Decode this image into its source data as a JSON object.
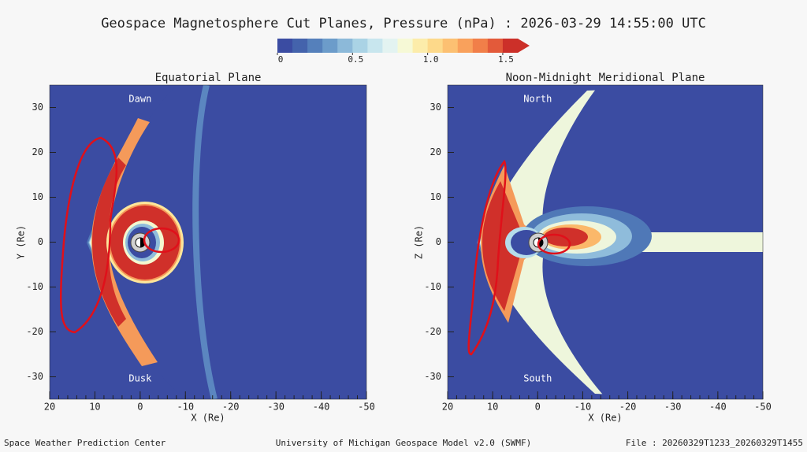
{
  "title": "Geospace Magnetosphere Cut Planes, Pressure (nPa) : 2026-03-29 14:55:00 UTC",
  "colorbar": {
    "lim": [
      0,
      1.6
    ],
    "ticks": [
      0,
      0.5,
      {
        "value": 1,
        "label": "1.0"
      },
      1.5
    ],
    "colors": [
      "#3b4ca2",
      "#4463ac",
      "#5580bb",
      "#6c9cca",
      "#8cb9d9",
      "#aad3e5",
      "#c8e6ee",
      "#e3f3f1",
      "#f6f9d6",
      "#fcecaa",
      "#fdd98a",
      "#fcc072",
      "#f9a15c",
      "#f17f49",
      "#e35a3a",
      "#cc3029"
    ]
  },
  "chart_data": [
    {
      "type": "contour",
      "title": "Equatorial Plane",
      "xlabel": "X (Re)",
      "ylabel": "Y (Re)",
      "xlim": [
        20,
        -50
      ],
      "ylim": [
        -35,
        35
      ],
      "xticks": [
        20,
        10,
        0,
        -10,
        -20,
        -30,
        -40,
        -50
      ],
      "yticks": [
        -30,
        -20,
        -10,
        0,
        10,
        20,
        30
      ],
      "annotations": [
        "Dawn",
        "Dusk"
      ]
    },
    {
      "type": "contour",
      "title": "Noon-Midnight Meridional Plane",
      "xlabel": "X (Re)",
      "ylabel": "Z (Re)",
      "xlim": [
        20,
        -50
      ],
      "ylim": [
        -35,
        35
      ],
      "xticks": [
        20,
        10,
        0,
        -10,
        -20,
        -30,
        -40,
        -50
      ],
      "yticks": [
        -30,
        -20,
        -10,
        0,
        10,
        20,
        30
      ],
      "annotations": [
        "North",
        "South"
      ]
    }
  ],
  "footer": {
    "left": "Space Weather Prediction Center",
    "center": "University of Michigan Geospace Model v2.0 (SWMF)",
    "right": "File : 20260329T1233_20260329T1455"
  }
}
